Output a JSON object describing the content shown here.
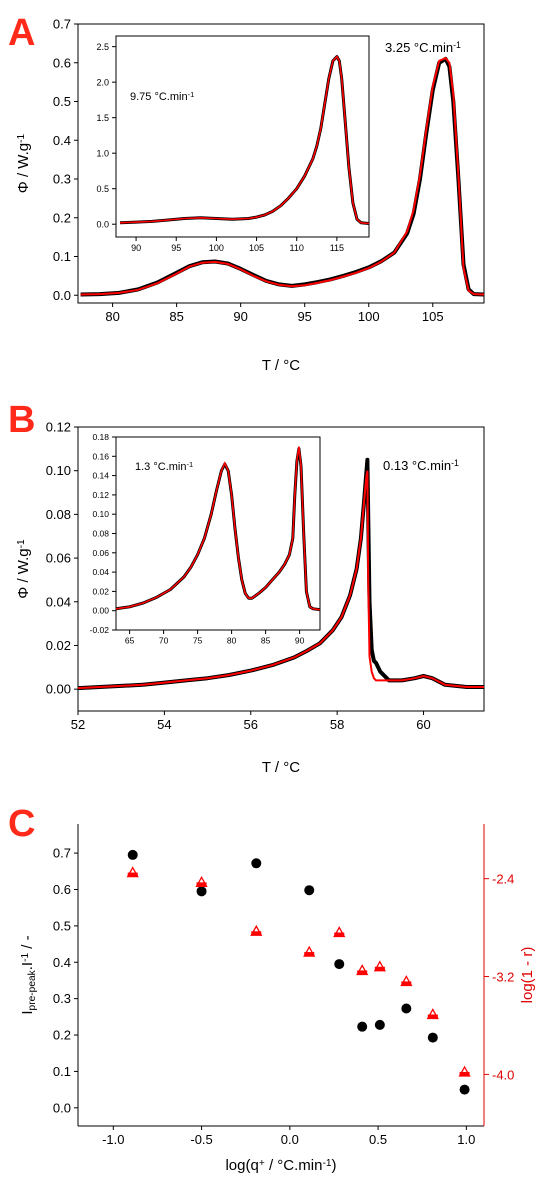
{
  "panels": {
    "a": {
      "letter": "A"
    },
    "b": {
      "letter": "B"
    },
    "c": {
      "letter": "C"
    }
  },
  "colors": {
    "series_black": "#000000",
    "series_red": "#ff0000",
    "panel_letter": "#ff2a1a",
    "axis_right": "#e00000"
  },
  "chart_data": [
    {
      "id": "A-main",
      "type": "line",
      "xlabel": "T   /   °C",
      "ylabel": "Φ   /   W.g-1",
      "xlim": [
        77.3,
        109
      ],
      "ylim": [
        -0.02,
        0.7
      ],
      "xticks": [
        80,
        85,
        90,
        95,
        100,
        105
      ],
      "yticks": [
        0.0,
        0.1,
        0.2,
        0.3,
        0.4,
        0.5,
        0.6,
        0.7
      ],
      "annotation": "3.25 °C.min-1",
      "series": [
        {
          "marker": "open-circle",
          "color": "black",
          "x": [
            77.5,
            79,
            80.5,
            82,
            83.5,
            85,
            86,
            87,
            88,
            89,
            90,
            91,
            92,
            93,
            94,
            95,
            96,
            97,
            98,
            99,
            100,
            101,
            102,
            103,
            103.5,
            104,
            104.5,
            105,
            105.5,
            106,
            106.3,
            106.6,
            107,
            107.4,
            107.8,
            108.2,
            109
          ],
          "y": [
            0.002,
            0.003,
            0.006,
            0.015,
            0.033,
            0.058,
            0.075,
            0.085,
            0.087,
            0.082,
            0.068,
            0.052,
            0.037,
            0.028,
            0.024,
            0.028,
            0.034,
            0.041,
            0.05,
            0.06,
            0.072,
            0.088,
            0.11,
            0.16,
            0.21,
            0.3,
            0.42,
            0.53,
            0.6,
            0.61,
            0.59,
            0.5,
            0.3,
            0.08,
            0.015,
            0.003,
            0.002
          ]
        },
        {
          "style": "line",
          "color": "red",
          "x": [
            77.5,
            79,
            80.5,
            82,
            83.5,
            85,
            86,
            87,
            88,
            89,
            90,
            91,
            92,
            93,
            94,
            95,
            96,
            97,
            98,
            99,
            100,
            101,
            102,
            103,
            103.5,
            104,
            104.5,
            105,
            105.5,
            106,
            106.3,
            106.6,
            107,
            107.4,
            107.8,
            108.2,
            109
          ],
          "y": [
            0.002,
            0.003,
            0.006,
            0.014,
            0.031,
            0.056,
            0.074,
            0.084,
            0.086,
            0.081,
            0.067,
            0.05,
            0.036,
            0.027,
            0.023,
            0.026,
            0.032,
            0.039,
            0.048,
            0.058,
            0.07,
            0.087,
            0.11,
            0.165,
            0.22,
            0.31,
            0.43,
            0.54,
            0.605,
            0.612,
            0.6,
            0.52,
            0.31,
            0.07,
            0.012,
            0.003,
            0.002
          ]
        }
      ]
    },
    {
      "id": "A-inset",
      "type": "line",
      "xlim": [
        87.5,
        119
      ],
      "ylim": [
        -0.18,
        2.65
      ],
      "xticks": [
        90,
        95,
        100,
        105,
        110,
        115
      ],
      "yticks": [
        0.0,
        0.5,
        1.0,
        1.5,
        2.0,
        2.5
      ],
      "annotation": "9.75 °C.min-1",
      "series": [
        {
          "marker": "open-circle",
          "color": "black",
          "x": [
            88,
            90,
            92,
            94,
            96,
            98,
            100,
            102,
            104,
            105,
            106,
            107,
            108,
            109,
            110,
            111,
            112,
            112.5,
            113,
            113.5,
            114,
            114.5,
            115,
            115.3,
            115.6,
            116,
            116.5,
            117,
            117.5,
            118,
            119
          ],
          "y": [
            0.02,
            0.03,
            0.04,
            0.06,
            0.08,
            0.09,
            0.08,
            0.07,
            0.08,
            0.1,
            0.13,
            0.18,
            0.26,
            0.37,
            0.5,
            0.68,
            0.92,
            1.1,
            1.35,
            1.7,
            2.05,
            2.3,
            2.36,
            2.3,
            2.05,
            1.5,
            0.8,
            0.3,
            0.07,
            0.02,
            0.01
          ]
        },
        {
          "style": "line",
          "color": "red",
          "x": [
            88,
            90,
            92,
            94,
            96,
            98,
            100,
            102,
            104,
            105,
            106,
            107,
            108,
            109,
            110,
            111,
            112,
            112.5,
            113,
            113.5,
            114,
            114.5,
            115,
            115.3,
            115.6,
            116,
            116.5,
            117,
            117.5,
            118,
            119
          ],
          "y": [
            0.02,
            0.03,
            0.04,
            0.06,
            0.08,
            0.09,
            0.08,
            0.07,
            0.08,
            0.1,
            0.13,
            0.18,
            0.26,
            0.37,
            0.5,
            0.68,
            0.92,
            1.1,
            1.35,
            1.7,
            2.05,
            2.3,
            2.36,
            2.3,
            2.05,
            1.5,
            0.8,
            0.3,
            0.07,
            0.02,
            0.01
          ]
        }
      ]
    },
    {
      "id": "B-main",
      "type": "line",
      "xlabel": "T   /   °C",
      "ylabel": "Φ   /   W.g-1",
      "xlim": [
        52,
        61.4
      ],
      "ylim": [
        -0.01,
        0.12
      ],
      "xticks": [
        52,
        54,
        56,
        58,
        60
      ],
      "yticks": [
        0.0,
        0.02,
        0.04,
        0.06,
        0.08,
        0.1,
        0.12
      ],
      "annotation": "0.13 °C.min-1",
      "series": [
        {
          "marker": "open-circle",
          "color": "black",
          "x": [
            52,
            52.5,
            53,
            53.5,
            54,
            54.5,
            55,
            55.5,
            56,
            56.5,
            57,
            57.3,
            57.6,
            57.9,
            58.1,
            58.3,
            58.45,
            58.55,
            58.62,
            58.68,
            58.7,
            58.72,
            58.75,
            58.8,
            58.85,
            58.9,
            59,
            59.2,
            59.5,
            59.8,
            60,
            60.2,
            60.5,
            61,
            61.4
          ],
          "y": [
            0.0005,
            0.001,
            0.0015,
            0.002,
            0.003,
            0.004,
            0.005,
            0.0065,
            0.0085,
            0.011,
            0.0145,
            0.0175,
            0.021,
            0.027,
            0.033,
            0.043,
            0.055,
            0.069,
            0.085,
            0.1,
            0.105,
            0.08,
            0.04,
            0.018,
            0.013,
            0.012,
            0.008,
            0.004,
            0.004,
            0.005,
            0.006,
            0.005,
            0.002,
            0.001,
            0.001
          ]
        },
        {
          "style": "line",
          "color": "red",
          "x": [
            52,
            52.5,
            53,
            53.5,
            54,
            54.5,
            55,
            55.5,
            56,
            56.5,
            57,
            57.3,
            57.6,
            57.9,
            58.1,
            58.3,
            58.45,
            58.55,
            58.62,
            58.68,
            58.7,
            58.72,
            58.75,
            58.8,
            58.85,
            58.9,
            59,
            59.2,
            59.5,
            59.8,
            60,
            60.2,
            60.5,
            61,
            61.4
          ],
          "y": [
            0.0005,
            0.001,
            0.0015,
            0.002,
            0.003,
            0.004,
            0.005,
            0.0065,
            0.0085,
            0.011,
            0.0145,
            0.0175,
            0.021,
            0.027,
            0.033,
            0.043,
            0.055,
            0.069,
            0.085,
            0.098,
            0.1,
            0.05,
            0.015,
            0.008,
            0.005,
            0.004,
            0.004,
            0.004,
            0.004,
            0.005,
            0.006,
            0.005,
            0.002,
            0.001,
            0.001
          ]
        }
      ]
    },
    {
      "id": "B-inset",
      "type": "line",
      "xlim": [
        63,
        93
      ],
      "ylim": [
        -0.02,
        0.18
      ],
      "xticks": [
        65,
        70,
        75,
        80,
        85,
        90
      ],
      "yticks": [
        -0.02,
        0.0,
        0.02,
        0.04,
        0.06,
        0.08,
        0.1,
        0.12,
        0.14,
        0.16,
        0.18
      ],
      "annotation": "1.3 °C.min-1",
      "series": [
        {
          "marker": "open-circle",
          "color": "black",
          "x": [
            63,
            65,
            67,
            69,
            71,
            73,
            74,
            75,
            76,
            77,
            77.8,
            78.5,
            79,
            79.5,
            80,
            80.5,
            81,
            81.5,
            82,
            82.5,
            83,
            84,
            85,
            86,
            87,
            87.8,
            88.5,
            89,
            89.3,
            89.6,
            89.9,
            90.2,
            90.6,
            91,
            91.5,
            92,
            93
          ],
          "y": [
            0.002,
            0.004,
            0.008,
            0.014,
            0.022,
            0.035,
            0.045,
            0.058,
            0.075,
            0.1,
            0.125,
            0.145,
            0.152,
            0.145,
            0.12,
            0.085,
            0.055,
            0.032,
            0.018,
            0.013,
            0.013,
            0.018,
            0.024,
            0.032,
            0.04,
            0.048,
            0.058,
            0.075,
            0.12,
            0.155,
            0.168,
            0.15,
            0.08,
            0.02,
            0.004,
            0.002,
            0.001
          ]
        },
        {
          "style": "line",
          "color": "red",
          "x": [
            63,
            65,
            67,
            69,
            71,
            73,
            74,
            75,
            76,
            77,
            77.8,
            78.5,
            79,
            79.5,
            80,
            80.5,
            81,
            81.5,
            82,
            82.5,
            83,
            84,
            85,
            86,
            87,
            87.8,
            88.5,
            89,
            89.3,
            89.6,
            89.9,
            90.2,
            90.6,
            91,
            91.5,
            92,
            93
          ],
          "y": [
            0.002,
            0.004,
            0.008,
            0.014,
            0.022,
            0.035,
            0.045,
            0.058,
            0.075,
            0.1,
            0.125,
            0.145,
            0.153,
            0.145,
            0.12,
            0.085,
            0.055,
            0.032,
            0.018,
            0.013,
            0.013,
            0.018,
            0.024,
            0.032,
            0.04,
            0.048,
            0.058,
            0.075,
            0.12,
            0.156,
            0.17,
            0.15,
            0.08,
            0.02,
            0.004,
            0.002,
            0.001
          ]
        }
      ]
    },
    {
      "id": "C",
      "type": "scatter",
      "xlabel": "log(q+ / °C.min-1)",
      "ylabel": "Ipre-peak.I-1   /   -",
      "y2label": "log(1 - r)",
      "xlim": [
        -1.2,
        1.1
      ],
      "ylim": [
        -0.05,
        0.78
      ],
      "y2lim": [
        -4.422,
        -1.953
      ],
      "xticks": [
        -1.0,
        -0.5,
        0.0,
        0.5,
        1.0
      ],
      "yticks": [
        0.0,
        0.1,
        0.2,
        0.3,
        0.4,
        0.5,
        0.6,
        0.7
      ],
      "y2ticks": [
        -2.4,
        -3.2,
        -4.0
      ],
      "series": [
        {
          "marker": "filled-circle",
          "color": "black",
          "axis": "left",
          "x": [
            -0.89,
            -0.5,
            -0.19,
            0.11,
            0.28,
            0.41,
            0.51,
            0.66,
            0.81,
            0.99
          ],
          "y": [
            0.695,
            0.595,
            0.672,
            0.598,
            0.395,
            0.223,
            0.228,
            0.273,
            0.193,
            0.05
          ]
        },
        {
          "marker": "open-triangle",
          "color": "red",
          "axis": "right",
          "x": [
            -0.89,
            -0.5,
            -0.19,
            0.11,
            0.28,
            0.41,
            0.51,
            0.66,
            0.81,
            0.99
          ],
          "y": [
            -2.35,
            -2.43,
            -2.83,
            -3.0,
            -2.84,
            -3.15,
            -3.12,
            -3.24,
            -3.51,
            -3.98
          ]
        }
      ]
    }
  ]
}
